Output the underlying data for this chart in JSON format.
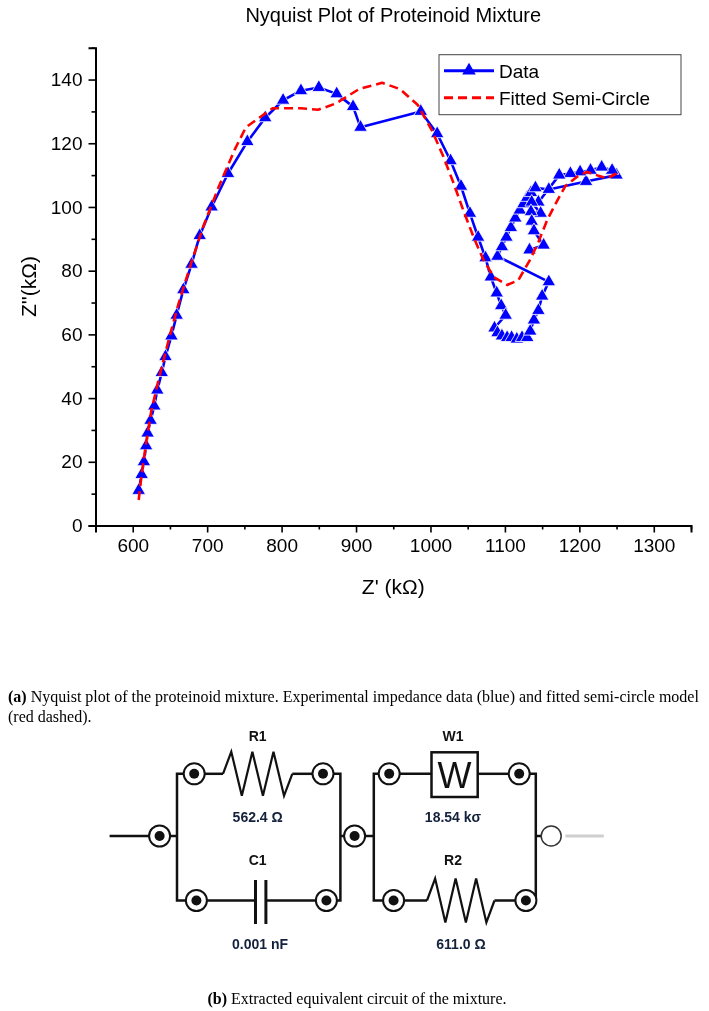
{
  "chart_data": [
    {
      "type": "line",
      "title": "Nyquist Plot of Proteinoid Mixture",
      "xlabel": "Z' (kΩ)",
      "ylabel": "Z''(kΩ)",
      "xlim": [
        550,
        1350
      ],
      "xticks": [
        {
          "value": 550,
          "label": null
        },
        600,
        {
          "value": 650,
          "label": null
        },
        700,
        {
          "value": 750,
          "label": null
        },
        800,
        {
          "value": 850,
          "label": null
        },
        900,
        {
          "value": 950,
          "label": null
        },
        1000,
        {
          "value": 1050,
          "label": null
        },
        1100,
        {
          "value": 1150,
          "label": null
        },
        1200,
        {
          "value": 1250,
          "label": null
        },
        1300,
        {
          "value": 1350,
          "label": null
        }
      ],
      "ylim": [
        0,
        150
      ],
      "yticks": [
        0,
        {
          "value": 10,
          "label": null
        },
        20,
        {
          "value": 30,
          "label": null
        },
        40,
        {
          "value": 50,
          "label": null
        },
        60,
        {
          "value": 70,
          "label": null
        },
        80,
        {
          "value": 90,
          "label": null
        },
        100,
        {
          "value": 110,
          "label": null
        },
        120,
        {
          "value": 130,
          "label": null
        },
        140,
        {
          "value": 150,
          "label": null
        }
      ],
      "legend": "top right",
      "series": [
        {
          "name": "Data",
          "color": "#0000ff",
          "marker": "triangle",
          "line_style": "solid",
          "x": [
            608,
            612,
            615,
            618,
            620,
            624,
            629,
            633,
            639,
            644,
            652,
            659,
            668,
            679,
            690,
            706,
            728,
            754,
            778,
            802,
            826,
            850,
            874,
            896,
            906,
            987,
            1009,
            1027,
            1041,
            1053,
            1064,
            1074,
            1081,
            1089,
            1095,
            1101,
            1086,
            1090,
            1096,
            1103,
            1109,
            1116,
            1123,
            1130,
            1134,
            1139,
            1145,
            1150,
            1159,
            1090,
            1096,
            1102,
            1108,
            1114,
            1120,
            1125,
            1130,
            1135,
            1141,
            1159,
            1209,
            1250,
            1244,
            1230,
            1215,
            1201,
            1188,
            1173,
            1145,
            1136,
            1148,
            1135,
            1136,
            1139,
            1152,
            1133
          ],
          "values": [
            11,
            16,
            20,
            25,
            29,
            33,
            37.5,
            42.5,
            48,
            53,
            59.5,
            66,
            74,
            82,
            91,
            100,
            110.5,
            120.5,
            128,
            133.5,
            136.5,
            137.5,
            135.5,
            131.5,
            125,
            130,
            123,
            114.5,
            106.5,
            98,
            90.5,
            84,
            78,
            73,
            69,
            66,
            62,
            60.5,
            59.5,
            59,
            59,
            58.5,
            59,
            59,
            61,
            64.5,
            67.5,
            72,
            76.5,
            84.5,
            87.5,
            90.5,
            93.5,
            96.5,
            99,
            101,
            103,
            104.5,
            106,
            105.5,
            108,
            110,
            111.5,
            112.5,
            111.5,
            111,
            110.5,
            110,
            101.5,
            101.5,
            98,
            98.5,
            95.5,
            92.5,
            88,
            86.5
          ]
        },
        {
          "name": "Fitted Semi-Circle",
          "color": "#ff0000",
          "marker": "none",
          "line_style": "dashed",
          "x": [
            608,
            612,
            618,
            625,
            635,
            648,
            662,
            678,
            695,
            715,
            737,
            752,
            770,
            788,
            825,
            849,
            873,
            904,
            935,
            959,
            983,
            1002,
            1017,
            1031,
            1044,
            1058,
            1071,
            1085,
            1103,
            1118,
            1134,
            1145,
            1157,
            1168,
            1181,
            1197,
            1210,
            1223,
            1237,
            1250
          ],
          "values": [
            8,
            16,
            26,
            36,
            46,
            58,
            70,
            82,
            94,
            106,
            118,
            125,
            128,
            131,
            131,
            130.5,
            132.5,
            137,
            139,
            137,
            132,
            124,
            116,
            107.5,
            99,
            90.5,
            83.5,
            78,
            75.5,
            77,
            83.5,
            89,
            96,
            101,
            106.5,
            109.5,
            111,
            110,
            109,
            110.5
          ]
        }
      ],
      "annotations": [
        "(a) Nyquist plot of the proteinoid mixture. Experimental impedance data (blue) and fitted semi-circle model (red dashed)."
      ]
    },
    {
      "type": "other",
      "annotations": [
        "R1",
        "562.4 Ω",
        "W",
        "W1",
        "18.54 kσ",
        "C1",
        "0.001 nF",
        "R2",
        "611.0 Ω",
        "(b) Extracted equivalent circuit of the mixture."
      ]
    }
  ]
}
